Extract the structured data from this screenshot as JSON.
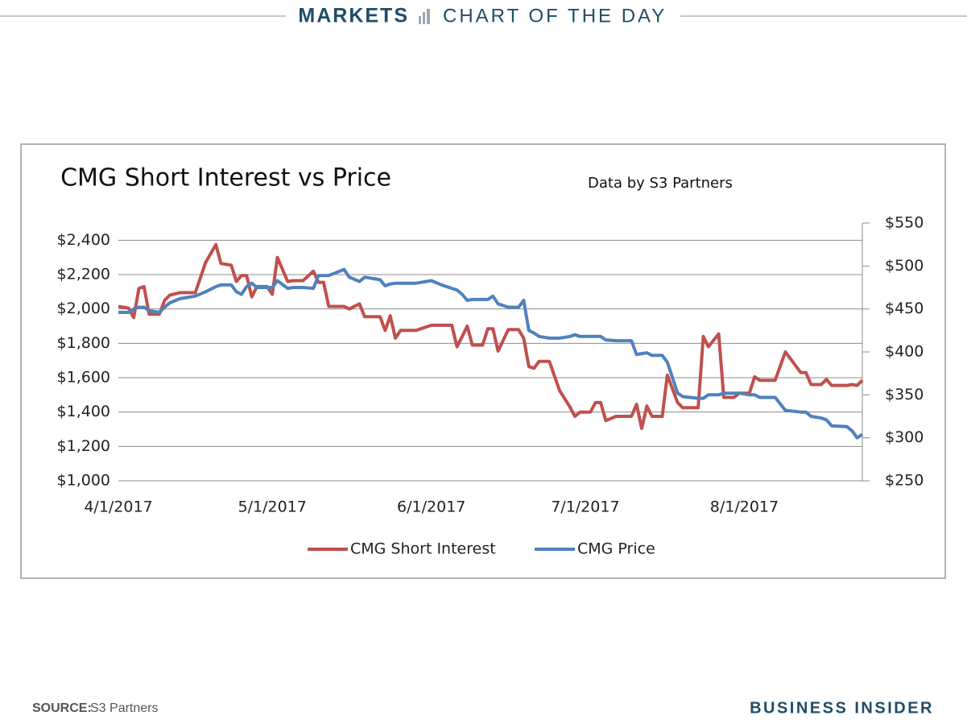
{
  "header": {
    "section": "MARKETS",
    "title": "CHART OF THE DAY"
  },
  "footer": {
    "source_label": "SOURCE:",
    "source": "S3 Partners",
    "brand": "BUSINESS INSIDER"
  },
  "chart_data": {
    "type": "line",
    "title": "CMG Short Interest vs Price",
    "subtitle": "Data by S3 Partners",
    "x": [
      "2017-04-01",
      "2017-04-03",
      "2017-04-04",
      "2017-04-05",
      "2017-04-06",
      "2017-04-07",
      "2017-04-09",
      "2017-04-10",
      "2017-04-11",
      "2017-04-13",
      "2017-04-16",
      "2017-04-18",
      "2017-04-20",
      "2017-04-21",
      "2017-04-23",
      "2017-04-24",
      "2017-04-25",
      "2017-04-26",
      "2017-04-27",
      "2017-04-28",
      "2017-04-30",
      "2017-05-01",
      "2017-05-02",
      "2017-05-04",
      "2017-05-05",
      "2017-05-07",
      "2017-05-09",
      "2017-05-10",
      "2017-05-11",
      "2017-05-12",
      "2017-05-15",
      "2017-05-16",
      "2017-05-18",
      "2017-05-19",
      "2017-05-22",
      "2017-05-23",
      "2017-05-24",
      "2017-05-25",
      "2017-05-26",
      "2017-05-29",
      "2017-06-01",
      "2017-06-03",
      "2017-06-05",
      "2017-06-06",
      "2017-06-07",
      "2017-06-08",
      "2017-06-09",
      "2017-06-11",
      "2017-06-12",
      "2017-06-13",
      "2017-06-14",
      "2017-06-16",
      "2017-06-18",
      "2017-06-19",
      "2017-06-20",
      "2017-06-21",
      "2017-06-22",
      "2017-06-24",
      "2017-06-26",
      "2017-06-28",
      "2017-06-29",
      "2017-06-30",
      "2017-07-02",
      "2017-07-03",
      "2017-07-04",
      "2017-07-05",
      "2017-07-07",
      "2017-07-10",
      "2017-07-11",
      "2017-07-12",
      "2017-07-13",
      "2017-07-14",
      "2017-07-16",
      "2017-07-17",
      "2017-07-19",
      "2017-07-20",
      "2017-07-23",
      "2017-07-24",
      "2017-07-25",
      "2017-07-27",
      "2017-07-28",
      "2017-07-30",
      "2017-07-31",
      "2017-08-02",
      "2017-08-03",
      "2017-08-04",
      "2017-08-07",
      "2017-08-09",
      "2017-08-12",
      "2017-08-13",
      "2017-08-14",
      "2017-08-16",
      "2017-08-17",
      "2017-08-18",
      "2017-08-21",
      "2017-08-22",
      "2017-08-23",
      "2017-08-24"
    ],
    "series": [
      {
        "name": "CMG Short Interest",
        "color": "#c0504d",
        "axis": "y",
        "values": [
          2015,
          2005,
          1950,
          2120,
          2130,
          1970,
          1970,
          2050,
          2080,
          2095,
          2095,
          2270,
          2375,
          2265,
          2255,
          2160,
          2195,
          2195,
          2070,
          2130,
          2130,
          2085,
          2300,
          2160,
          2165,
          2165,
          2220,
          2155,
          2155,
          2015,
          2015,
          2000,
          2030,
          1955,
          1955,
          1875,
          1960,
          1830,
          1875,
          1875,
          1905,
          1905,
          1905,
          1780,
          1840,
          1900,
          1790,
          1790,
          1885,
          1885,
          1755,
          1880,
          1880,
          1830,
          1665,
          1655,
          1695,
          1695,
          1525,
          1430,
          1375,
          1400,
          1400,
          1455,
          1455,
          1350,
          1375,
          1375,
          1445,
          1305,
          1435,
          1375,
          1375,
          1615,
          1455,
          1425,
          1425,
          1840,
          1780,
          1855,
          1485,
          1485,
          1510,
          1510,
          1605,
          1585,
          1585,
          1750,
          1630,
          1630,
          1560,
          1560,
          1590,
          1555,
          1555,
          1560,
          1555,
          1585
        ]
      },
      {
        "name": "CMG Price",
        "color": "#4f81bd",
        "axis": "y2",
        "values": [
          446,
          446,
          450,
          452,
          452,
          448,
          446,
          452,
          457,
          462,
          465,
          470,
          476,
          478,
          478,
          470,
          467,
          476,
          480,
          475,
          475,
          475,
          483,
          474,
          475,
          475,
          474,
          489,
          489,
          489,
          496,
          487,
          482,
          487,
          484,
          477,
          479,
          480,
          480,
          480,
          483,
          478,
          474,
          472,
          467,
          460,
          461,
          461,
          461,
          465,
          456,
          452,
          452,
          460,
          425,
          422,
          418,
          416,
          416,
          418,
          420,
          418,
          418,
          418,
          418,
          414,
          413,
          413,
          397,
          398,
          399,
          396,
          396,
          388,
          352,
          348,
          346,
          346,
          350,
          350,
          352,
          352,
          352,
          350,
          350,
          347,
          347,
          332,
          330,
          330,
          325,
          323,
          321,
          314,
          313,
          308,
          300,
          304
        ]
      }
    ],
    "xlim": [
      "2017-04-01",
      "2017-08-24"
    ],
    "xticks": [
      {
        "value": "2017-04-01",
        "label": "4/1/2017"
      },
      {
        "value": "2017-05-01",
        "label": "5/1/2017"
      },
      {
        "value": "2017-06-01",
        "label": "6/1/2017"
      },
      {
        "value": "2017-07-01",
        "label": "7/1/2017"
      },
      {
        "value": "2017-08-01",
        "label": "8/1/2017"
      }
    ],
    "ylim": [
      1000,
      2500
    ],
    "yticks": [
      {
        "value": 1000,
        "label": "$1,000"
      },
      {
        "value": 1200,
        "label": "$1,200"
      },
      {
        "value": 1400,
        "label": "$1,400"
      },
      {
        "value": 1600,
        "label": "$1,600"
      },
      {
        "value": 1800,
        "label": "$1,800"
      },
      {
        "value": 2000,
        "label": "$2,000"
      },
      {
        "value": 2200,
        "label": "$2,200"
      },
      {
        "value": 2400,
        "label": "$2,400"
      }
    ],
    "y2lim": [
      250,
      550
    ],
    "y2ticks": [
      {
        "value": 250,
        "label": "$250"
      },
      {
        "value": 300,
        "label": "$300"
      },
      {
        "value": 350,
        "label": "$350"
      },
      {
        "value": 400,
        "label": "$400"
      },
      {
        "value": 450,
        "label": "$450"
      },
      {
        "value": 500,
        "label": "$500"
      },
      {
        "value": 550,
        "label": "$550"
      }
    ],
    "grid": true,
    "legend": "bottom"
  }
}
